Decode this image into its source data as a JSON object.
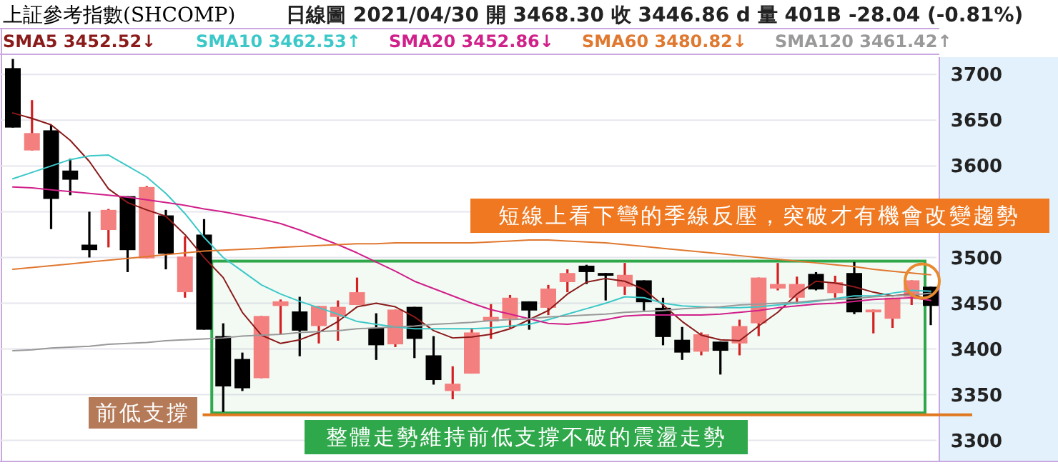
{
  "chart_data": {
    "type": "candlestick",
    "title": "上証參考指數(SHCOMP)",
    "subtitle": "日線圖  2021/04/30  開 3468.30  收 3446.86 d  量 401B  -28.04 (-0.81%)",
    "categories": [
      null,
      null,
      null,
      null,
      null,
      null,
      null,
      null,
      null,
      null,
      null,
      null,
      null,
      null,
      null,
      null,
      null,
      null,
      null,
      null,
      null,
      null,
      null,
      null,
      null,
      null,
      null,
      null,
      null,
      null,
      null,
      null,
      null,
      null,
      null,
      null,
      null,
      null,
      null,
      null,
      null,
      null,
      null,
      null,
      null,
      null,
      null,
      null,
      null
    ],
    "ohlc": [
      [
        3707,
        3717,
        3642,
        3642
      ],
      [
        3617,
        3672,
        3617,
        3636
      ],
      [
        3639,
        3645,
        3531,
        3564
      ],
      [
        3595,
        3608,
        3568,
        3585
      ],
      [
        3514,
        3550,
        3500,
        3508
      ],
      [
        3530,
        3553,
        3511,
        3552
      ],
      [
        3567,
        3567,
        3484,
        3508
      ],
      [
        3499,
        3578,
        3499,
        3577
      ],
      [
        3546,
        3552,
        3487,
        3504
      ],
      [
        3462,
        3523,
        3456,
        3501
      ],
      [
        3525,
        3542,
        3421,
        3421
      ],
      [
        3414,
        3428,
        3331,
        3359
      ],
      [
        3389,
        3396,
        3354,
        3357
      ],
      [
        3368,
        3436,
        3368,
        3436
      ],
      [
        3447,
        3454,
        3416,
        3452
      ],
      [
        3441,
        3457,
        3392,
        3420
      ],
      [
        3425,
        3447,
        3406,
        3447
      ],
      [
        3435,
        3453,
        3409,
        3446
      ],
      [
        3448,
        3478,
        3448,
        3462
      ],
      [
        3423,
        3439,
        3388,
        3404
      ],
      [
        3405,
        3443,
        3402,
        3443
      ],
      [
        3446,
        3446,
        3390,
        3411
      ],
      [
        3393,
        3414,
        3361,
        3366
      ],
      [
        3354,
        3381,
        3345,
        3362
      ],
      [
        3373,
        3423,
        3373,
        3418
      ],
      [
        3430,
        3449,
        3411,
        3435
      ],
      [
        3433,
        3459,
        3423,
        3456
      ],
      [
        3452,
        3452,
        3421,
        3442
      ],
      [
        3445,
        3470,
        3437,
        3466
      ],
      [
        3473,
        3487,
        3462,
        3483
      ],
      [
        3491,
        3492,
        3471,
        3484
      ],
      [
        3483,
        3483,
        3453,
        3480
      ],
      [
        3468,
        3494,
        3459,
        3481
      ],
      [
        3475,
        3475,
        3442,
        3451
      ],
      [
        3445,
        3456,
        3404,
        3413
      ],
      [
        3410,
        3424,
        3388,
        3396
      ],
      [
        3397,
        3418,
        3393,
        3416
      ],
      [
        3408,
        3408,
        3372,
        3398
      ],
      [
        3406,
        3432,
        3393,
        3425
      ],
      [
        3428,
        3478,
        3414,
        3478
      ],
      [
        3466,
        3494,
        3464,
        3471
      ],
      [
        3456,
        3479,
        3449,
        3471
      ],
      [
        3482,
        3484,
        3464,
        3465
      ],
      [
        3461,
        3480,
        3456,
        3473
      ],
      [
        3483,
        3495,
        3438,
        3440
      ],
      [
        3440,
        3443,
        3417,
        3443
      ],
      [
        3433,
        3456,
        3423,
        3456
      ],
      [
        3457,
        3475,
        3448,
        3475
      ],
      [
        3468,
        3468,
        3426,
        3447
      ]
    ],
    "series": [
      {
        "name": "SMA5 3452.52↓",
        "type": "line",
        "color": "#8b1a1a",
        "values": [
          3658,
          3652,
          3645,
          3628,
          3605,
          3575,
          3560,
          3552,
          3545,
          3525,
          3500,
          3478,
          3440,
          3415,
          3406,
          3410,
          3418,
          3430,
          3446,
          3450,
          3446,
          3435,
          3420,
          3412,
          3413,
          3416,
          3422,
          3432,
          3442,
          3460,
          3473,
          3477,
          3474,
          3465,
          3448,
          3430,
          3415,
          3410,
          3409,
          3425,
          3440,
          3460,
          3474,
          3472,
          3468,
          3462,
          3458,
          3460,
          3453
        ]
      },
      {
        "name": "SMA10 3462.53↑",
        "type": "line",
        "color": "#3cc8c8",
        "values": [
          3586,
          3593,
          3600,
          3607,
          3611,
          3612,
          3600,
          3588,
          3570,
          3548,
          3522,
          3500,
          3485,
          3470,
          3460,
          3452,
          3445,
          3438,
          3430,
          3427,
          3424,
          3422,
          3422,
          3422,
          3422,
          3423,
          3425,
          3427,
          3432,
          3438,
          3444,
          3450,
          3457,
          3456,
          3450,
          3447,
          3446,
          3445,
          3445,
          3446,
          3448,
          3450,
          3452,
          3455,
          3458,
          3458,
          3461,
          3464,
          3463
        ]
      },
      {
        "name": "SMA20 3452.86↓",
        "type": "line",
        "color": "#d0208a",
        "values": [
          3577,
          3576,
          3574,
          3572,
          3570,
          3568,
          3566,
          3563,
          3560,
          3557,
          3553,
          3550,
          3546,
          3542,
          3537,
          3530,
          3522,
          3514,
          3505,
          3495,
          3485,
          3474,
          3466,
          3458,
          3450,
          3443,
          3438,
          3433,
          3428,
          3427,
          3429,
          3432,
          3436,
          3437,
          3437,
          3437,
          3437,
          3438,
          3440,
          3442,
          3445,
          3447,
          3449,
          3450,
          3452,
          3454,
          3455,
          3456,
          3453
        ]
      },
      {
        "name": "SMA60 3480.82↓",
        "type": "line",
        "color": "#e07830",
        "values": [
          3487,
          3489,
          3491,
          3493,
          3495,
          3497,
          3499,
          3501,
          3503,
          3505,
          3507,
          3508,
          3509,
          3510,
          3511,
          3512,
          3513,
          3514,
          3515,
          3515,
          3516,
          3516,
          3516,
          3516,
          3516,
          3517,
          3518,
          3519,
          3519,
          3518,
          3517,
          3516,
          3514,
          3512,
          3510,
          3508,
          3506,
          3504,
          3502,
          3500,
          3498,
          3496,
          3494,
          3492,
          3490,
          3487,
          3485,
          3483,
          3481
        ]
      },
      {
        "name": "SMA120 3461.42↑",
        "type": "line",
        "color": "#999999",
        "values": [
          3398,
          3399,
          3401,
          3402,
          3403,
          3405,
          3406,
          3407,
          3409,
          3410,
          3411,
          3412,
          3414,
          3415,
          3416,
          3418,
          3419,
          3420,
          3422,
          3423,
          3424,
          3425,
          3427,
          3428,
          3429,
          3431,
          3432,
          3433,
          3435,
          3436,
          3437,
          3438,
          3440,
          3441,
          3442,
          3444,
          3445,
          3446,
          3448,
          3449,
          3450,
          3451,
          3453,
          3454,
          3455,
          3457,
          3458,
          3459,
          3461
        ]
      }
    ],
    "ylim": [
      3277,
      3719
    ],
    "yticks": [
      3300,
      3350,
      3400,
      3450,
      3500,
      {
        "value": 3550,
        "label": null
      },
      3600,
      3650,
      3700
    ],
    "grid": "y",
    "legend": "top",
    "ref_lines": [
      {
        "axis": "y",
        "value": 3328,
        "label": "前低支撐",
        "color": "#e07820"
      }
    ],
    "bands": [
      {
        "axis": "y",
        "from": 3330,
        "to": 3496,
        "label": "整體走勢維持前低支撐不破的震盪走勢",
        "color": "#2ea84a"
      }
    ],
    "annotations": [
      "短線上看下彎的季線反壓，突破才有機會改變趨勢"
    ]
  }
}
